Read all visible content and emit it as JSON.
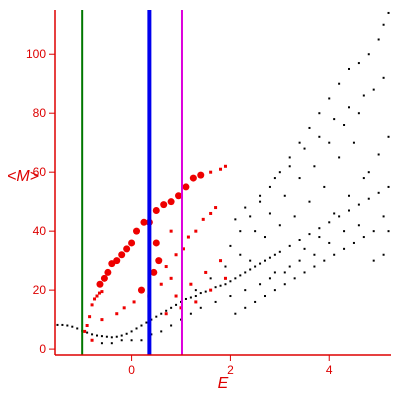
{
  "chart_data": {
    "type": "scatter",
    "title": "",
    "xlabel": "E",
    "ylabel": "<M>",
    "xlim": [
      -1.55,
      5.25
    ],
    "ylim": [
      -2,
      115
    ],
    "x_ticks": [
      0,
      2,
      4
    ],
    "y_ticks": [
      0,
      20,
      40,
      60,
      80,
      100
    ],
    "grid": false,
    "legend": "none",
    "colors": {
      "axis": "#dd0000",
      "highlight_points": "#ee0000",
      "background_points": "#000000",
      "line_green": "#007700",
      "line_blue": "#0000ee",
      "line_magenta": "#dd00dd"
    },
    "vertical_lines": [
      {
        "name": "",
        "x": -1.0,
        "color": "#007700"
      },
      {
        "name": "",
        "x": 0.36,
        "color": "#0000ee"
      },
      {
        "name": "",
        "x": 1.02,
        "color": "#dd00dd"
      }
    ],
    "series": [
      {
        "name": "",
        "color": "#ee0000",
        "points": [
          [
            -0.95,
            6
          ],
          [
            -0.9,
            8
          ],
          [
            -0.85,
            11
          ],
          [
            -0.8,
            15
          ],
          [
            -0.75,
            17
          ],
          [
            -0.7,
            18
          ],
          [
            -0.65,
            19
          ],
          [
            -0.6,
            19.5
          ],
          [
            -0.64,
            22
          ],
          [
            -0.55,
            24
          ],
          [
            -0.48,
            26
          ],
          [
            -0.4,
            29
          ],
          [
            -0.3,
            30
          ],
          [
            -0.2,
            32
          ],
          [
            -0.1,
            34
          ],
          [
            0.0,
            36
          ],
          [
            0.1,
            40
          ],
          [
            0.25,
            43
          ],
          [
            0.36,
            43
          ],
          [
            0.5,
            47
          ],
          [
            0.65,
            49
          ],
          [
            0.8,
            50
          ],
          [
            0.95,
            52
          ],
          [
            1.1,
            55
          ],
          [
            1.25,
            58
          ],
          [
            1.4,
            59
          ],
          [
            1.6,
            60
          ],
          [
            1.8,
            61
          ],
          [
            1.9,
            62
          ],
          [
            0.55,
            30
          ],
          [
            0.7,
            28
          ],
          [
            0.9,
            32
          ],
          [
            1.05,
            34
          ],
          [
            0.8,
            24
          ],
          [
            0.6,
            22
          ],
          [
            0.45,
            26
          ],
          [
            1.15,
            38
          ],
          [
            1.3,
            40
          ],
          [
            1.45,
            44
          ],
          [
            1.6,
            46
          ],
          [
            1.7,
            48
          ],
          [
            0.2,
            20
          ],
          [
            0.35,
            18
          ],
          [
            0.05,
            16
          ],
          [
            -0.15,
            14
          ],
          [
            -0.3,
            12
          ],
          [
            0.9,
            18
          ],
          [
            1.2,
            22
          ],
          [
            1.5,
            26
          ],
          [
            1.8,
            30
          ],
          [
            1.3,
            16
          ],
          [
            1.0,
            14
          ],
          [
            0.7,
            12
          ],
          [
            -0.6,
            10
          ],
          [
            -0.8,
            3
          ],
          [
            1.6,
            20
          ],
          [
            1.9,
            24
          ],
          [
            0.5,
            36
          ],
          [
            0.8,
            40
          ]
        ]
      },
      {
        "name": "",
        "color": "#000000",
        "points": [
          [
            -1.5,
            8.2
          ],
          [
            -1.4,
            8.2
          ],
          [
            -1.3,
            8.0
          ],
          [
            -1.2,
            7.6
          ],
          [
            -1.1,
            7.0
          ],
          [
            -1.0,
            6.2
          ],
          [
            -0.9,
            5.6
          ],
          [
            -0.8,
            5.0
          ],
          [
            -0.7,
            4.6
          ],
          [
            -0.6,
            4.4
          ],
          [
            -0.5,
            4.2
          ],
          [
            -0.4,
            4.0
          ],
          [
            -0.3,
            4.2
          ],
          [
            -0.2,
            4.6
          ],
          [
            -0.1,
            5.2
          ],
          [
            0.0,
            6.0
          ],
          [
            0.1,
            7.0
          ],
          [
            0.2,
            8.0
          ],
          [
            0.3,
            9.0
          ],
          [
            0.4,
            10.0
          ],
          [
            0.5,
            11.0
          ],
          [
            0.6,
            12.0
          ],
          [
            0.7,
            13.0
          ],
          [
            0.8,
            14.0
          ],
          [
            0.9,
            15.0
          ],
          [
            1.0,
            16.0
          ],
          [
            1.1,
            17.0
          ],
          [
            1.2,
            17.5
          ],
          [
            1.3,
            18.0
          ],
          [
            1.4,
            19.0
          ],
          [
            1.5,
            19.5
          ],
          [
            1.6,
            20.0
          ],
          [
            1.7,
            21.0
          ],
          [
            1.8,
            21.5
          ],
          [
            1.9,
            22.0
          ],
          [
            2.0,
            23.0
          ],
          [
            2.1,
            24.0
          ],
          [
            2.2,
            25.0
          ],
          [
            2.3,
            26.0
          ],
          [
            2.4,
            27.0
          ],
          [
            2.5,
            28.0
          ],
          [
            2.6,
            29.0
          ],
          [
            2.7,
            30.0
          ],
          [
            2.8,
            31.0
          ],
          [
            2.9,
            32.0
          ],
          [
            3.0,
            33.0
          ],
          [
            3.2,
            35.0
          ],
          [
            3.4,
            37.0
          ],
          [
            3.6,
            39.0
          ],
          [
            3.8,
            41.0
          ],
          [
            4.0,
            43.0
          ],
          [
            4.2,
            45.0
          ],
          [
            4.4,
            47.0
          ],
          [
            4.6,
            49.0
          ],
          [
            4.8,
            51.0
          ],
          [
            5.0,
            53.0
          ],
          [
            5.2,
            55.0
          ],
          [
            2.0,
            35
          ],
          [
            2.2,
            40
          ],
          [
            2.4,
            45
          ],
          [
            2.6,
            50
          ],
          [
            2.8,
            55
          ],
          [
            3.0,
            60
          ],
          [
            3.2,
            65
          ],
          [
            3.4,
            70
          ],
          [
            3.6,
            75
          ],
          [
            3.8,
            80
          ],
          [
            4.0,
            85
          ],
          [
            4.2,
            90
          ],
          [
            4.4,
            95
          ],
          [
            4.6,
            97
          ],
          [
            4.8,
            100
          ],
          [
            5.0,
            105
          ],
          [
            5.1,
            110
          ],
          [
            5.2,
            114
          ],
          [
            2.1,
            12
          ],
          [
            2.3,
            14
          ],
          [
            2.5,
            16
          ],
          [
            2.7,
            18
          ],
          [
            2.9,
            20
          ],
          [
            3.1,
            22
          ],
          [
            3.3,
            24
          ],
          [
            3.5,
            26
          ],
          [
            3.7,
            28
          ],
          [
            3.9,
            30
          ],
          [
            4.1,
            32
          ],
          [
            4.3,
            34
          ],
          [
            4.5,
            36
          ],
          [
            4.7,
            38
          ],
          [
            4.9,
            30
          ],
          [
            5.1,
            32
          ],
          [
            5.2,
            40
          ],
          [
            4.8,
            60
          ],
          [
            4.5,
            70
          ],
          [
            4.2,
            65
          ],
          [
            3.9,
            55
          ],
          [
            3.6,
            50
          ],
          [
            3.3,
            45
          ],
          [
            3.0,
            42
          ],
          [
            2.7,
            38
          ],
          [
            2.4,
            30
          ],
          [
            2.6,
            22
          ],
          [
            2.9,
            26
          ],
          [
            3.2,
            28
          ],
          [
            3.5,
            34
          ],
          [
            3.8,
            38
          ],
          [
            4.1,
            46
          ],
          [
            4.4,
            52
          ],
          [
            4.7,
            58
          ],
          [
            5.0,
            66
          ],
          [
            5.2,
            72
          ],
          [
            4.6,
            80
          ],
          [
            4.3,
            76
          ],
          [
            4.0,
            70
          ],
          [
            3.7,
            62
          ],
          [
            3.4,
            58
          ],
          [
            3.1,
            52
          ],
          [
            2.8,
            46
          ],
          [
            2.5,
            40
          ],
          [
            2.2,
            32
          ],
          [
            1.9,
            28
          ],
          [
            1.6,
            24
          ],
          [
            1.3,
            20
          ],
          [
            1.0,
            10
          ],
          [
            0.8,
            8
          ],
          [
            0.6,
            6
          ],
          [
            0.4,
            5
          ],
          [
            0.2,
            3
          ],
          [
            0.0,
            3
          ],
          [
            -0.2,
            3
          ],
          [
            -0.4,
            2
          ],
          [
            -0.6,
            2
          ],
          [
            -0.8,
            3
          ],
          [
            1.2,
            12
          ],
          [
            1.4,
            14
          ],
          [
            1.7,
            16
          ],
          [
            2.0,
            18
          ],
          [
            2.3,
            20
          ],
          [
            4.9,
            88
          ],
          [
            5.1,
            92
          ],
          [
            4.7,
            86
          ],
          [
            4.4,
            82
          ],
          [
            4.1,
            78
          ],
          [
            3.8,
            72
          ],
          [
            3.5,
            68
          ],
          [
            3.2,
            62
          ],
          [
            2.9,
            58
          ],
          [
            2.6,
            52
          ],
          [
            2.3,
            48
          ],
          [
            2.1,
            44
          ],
          [
            4.9,
            40
          ],
          [
            5.1,
            45
          ],
          [
            4.6,
            42
          ],
          [
            4.3,
            40
          ],
          [
            4.0,
            36
          ],
          [
            3.7,
            32
          ],
          [
            3.4,
            30
          ],
          [
            3.1,
            26
          ],
          [
            2.8,
            24
          ]
        ]
      }
    ]
  }
}
